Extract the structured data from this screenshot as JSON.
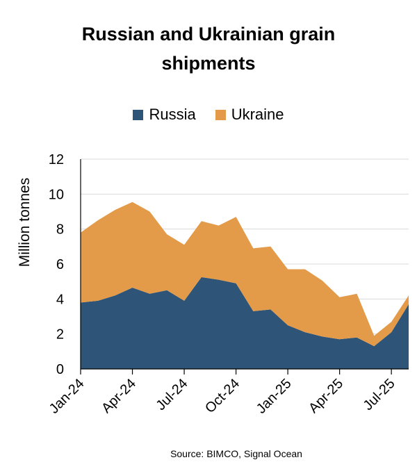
{
  "chart_data": {
    "type": "area",
    "stacked": true,
    "title_line1": "Russian and Ukrainian grain",
    "title_line2": "shipments",
    "ylabel": "Million tonnes",
    "xlabel": "",
    "ylim": [
      0,
      12
    ],
    "yticks": [
      0,
      2,
      4,
      6,
      8,
      10,
      12
    ],
    "grid": true,
    "legend_position": "top",
    "source": "Source: BIMCO, Signal Ocean",
    "x": [
      "Jan-24",
      "Feb-24",
      "Mar-24",
      "Apr-24",
      "May-24",
      "Jun-24",
      "Jul-24",
      "Aug-24",
      "Sep-24",
      "Oct-24",
      "Nov-24",
      "Dec-24",
      "Jan-25",
      "Feb-25",
      "Mar-25",
      "Apr-25",
      "May-25",
      "Jun-25",
      "Jul-25",
      "Aug-25"
    ],
    "xtick_labels": [
      "Jan-24",
      "Apr-24",
      "Jul-24",
      "Oct-24",
      "Jan-25",
      "Apr-25",
      "Jul-25"
    ],
    "series": [
      {
        "name": "Russia",
        "color": "#2e5478",
        "values": [
          3.8,
          3.9,
          4.2,
          4.65,
          4.3,
          4.5,
          3.9,
          5.25,
          5.1,
          4.9,
          3.3,
          3.4,
          2.5,
          2.1,
          1.85,
          1.7,
          1.8,
          1.3,
          2.1,
          3.7
        ]
      },
      {
        "name": "Ukraine",
        "color": "#e39b49",
        "values": [
          4.0,
          4.6,
          4.9,
          4.9,
          4.7,
          3.2,
          3.2,
          3.2,
          3.1,
          3.8,
          3.6,
          3.6,
          3.2,
          3.6,
          3.2,
          2.4,
          2.5,
          0.6,
          0.6,
          0.5
        ]
      }
    ]
  }
}
